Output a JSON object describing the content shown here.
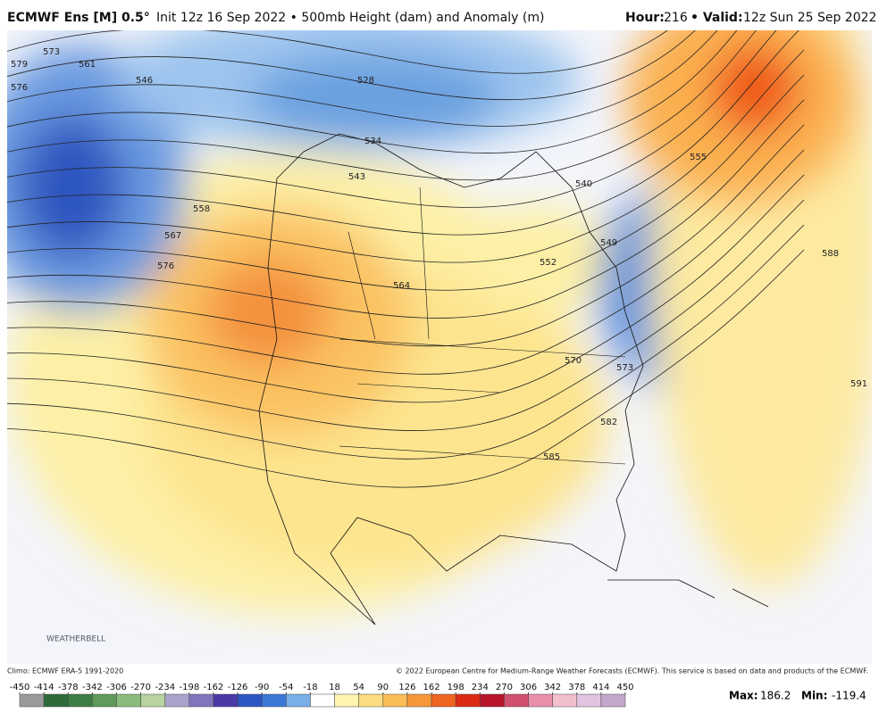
{
  "header": {
    "model": "ECMWF Ens [M] 0.5°",
    "description": "Init 12z 16 Sep 2022 • 500mb Height (dam) and Anomaly (m)",
    "hour_label": "Hour:",
    "hour": "216",
    "valid_label": "• Valid:",
    "valid": "12z Sun 25 Sep 2022"
  },
  "map": {
    "contour_labels": [
      "579",
      "573",
      "561",
      "576",
      "546",
      "528",
      "534",
      "543",
      "558",
      "567",
      "576",
      "564",
      "552",
      "549",
      "540",
      "555",
      "588",
      "591",
      "570",
      "573",
      "582",
      "585"
    ],
    "logo": "WEATHERBELL"
  },
  "footer": {
    "climo": "Climo: ECMWF ERA-5 1991-2020",
    "copyright": "© 2022 European Centre for Medium-Range Weather Forecasts (ECMWF). This service is based on data and products of the ECMWF.",
    "max_label": "Max:",
    "max": 186.2,
    "min_label": "Min:",
    "min": -119.4
  },
  "colorbar": {
    "ticks": [
      -450,
      -414,
      -378,
      -342,
      -306,
      -270,
      -234,
      -198,
      -162,
      -126,
      -90,
      -54,
      -18,
      18,
      54,
      90,
      126,
      162,
      198,
      234,
      270,
      306,
      342,
      378,
      414,
      450
    ],
    "colors": [
      "#9a9a9a",
      "#2f6b3a",
      "#3e7d45",
      "#5f9a5a",
      "#8cbc7c",
      "#b8d2a0",
      "#a9a3cc",
      "#7f76bc",
      "#4a3aa8",
      "#2c56c4",
      "#3a78d8",
      "#79aee8",
      "#ffffff",
      "#fff3b0",
      "#fddc80",
      "#fbbd55",
      "#f8963a",
      "#ef6420",
      "#dc2a14",
      "#b8142a",
      "#d05070",
      "#e890a8",
      "#f2c0cc",
      "#e0c4e0",
      "#c4a8cc"
    ]
  }
}
